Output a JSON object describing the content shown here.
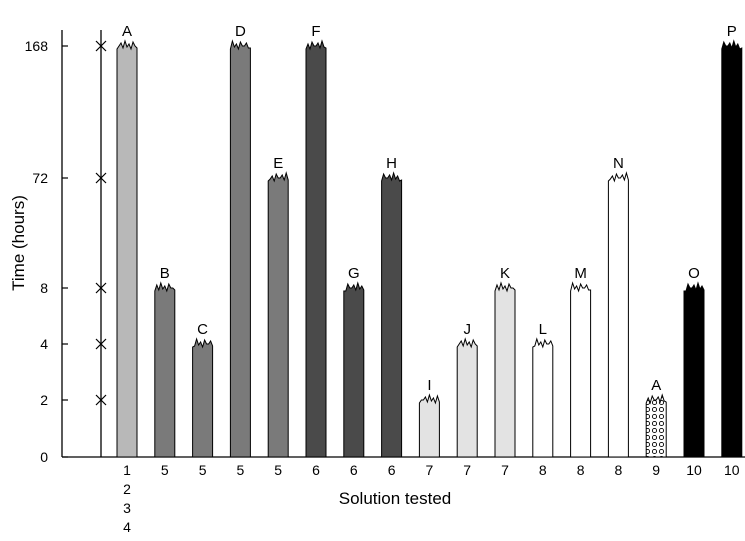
{
  "chart_data": {
    "type": "bar",
    "title": "",
    "xlabel": "Solution tested",
    "ylabel": "Time (hours)",
    "y_scale": "categorical (unequal spacing)",
    "y_ticks": [
      "0",
      "2",
      "4",
      "8",
      "72",
      "168"
    ],
    "y_axis_marks": [
      "2",
      "4",
      "8",
      "72",
      "168"
    ],
    "first_group_categories": [
      "1",
      "2",
      "3",
      "4"
    ],
    "bars": [
      {
        "label": "A",
        "solution": "1",
        "hours": 168,
        "fill": "#b8b8b8",
        "pattern": "solid"
      },
      {
        "label": "B",
        "solution": "5",
        "hours": 8,
        "fill": "#7a7a7a",
        "pattern": "solid"
      },
      {
        "label": "C",
        "solution": "5",
        "hours": 4,
        "fill": "#7a7a7a",
        "pattern": "solid"
      },
      {
        "label": "D",
        "solution": "5",
        "hours": 168,
        "fill": "#7a7a7a",
        "pattern": "solid"
      },
      {
        "label": "E",
        "solution": "5",
        "hours": 72,
        "fill": "#7a7a7a",
        "pattern": "solid"
      },
      {
        "label": "F",
        "solution": "6",
        "hours": 168,
        "fill": "#4a4a4a",
        "pattern": "solid"
      },
      {
        "label": "G",
        "solution": "6",
        "hours": 8,
        "fill": "#4a4a4a",
        "pattern": "solid"
      },
      {
        "label": "H",
        "solution": "6",
        "hours": 72,
        "fill": "#4a4a4a",
        "pattern": "solid"
      },
      {
        "label": "I",
        "solution": "7",
        "hours": 2,
        "fill": "#e3e3e3",
        "pattern": "solid"
      },
      {
        "label": "J",
        "solution": "7",
        "hours": 4,
        "fill": "#e3e3e3",
        "pattern": "solid"
      },
      {
        "label": "K",
        "solution": "7",
        "hours": 8,
        "fill": "#e3e3e3",
        "pattern": "solid"
      },
      {
        "label": "L",
        "solution": "8",
        "hours": 4,
        "fill": "#ffffff",
        "pattern": "solid"
      },
      {
        "label": "M",
        "solution": "8",
        "hours": 8,
        "fill": "#ffffff",
        "pattern": "solid"
      },
      {
        "label": "N",
        "solution": "8",
        "hours": 72,
        "fill": "#ffffff",
        "pattern": "solid"
      },
      {
        "label": "A",
        "solution": "9",
        "hours": 2,
        "fill": "#ffffff",
        "pattern": "dots"
      },
      {
        "label": "O",
        "solution": "10",
        "hours": 8,
        "fill": "#000000",
        "pattern": "solid"
      },
      {
        "label": "P",
        "solution": "10",
        "hours": 168,
        "fill": "#000000",
        "pattern": "solid"
      }
    ],
    "grid": false,
    "legend": "none"
  }
}
